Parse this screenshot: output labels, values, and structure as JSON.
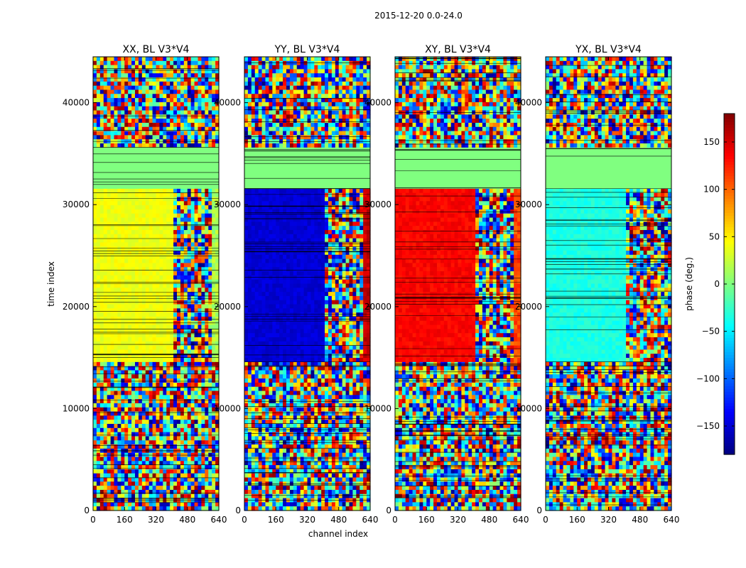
{
  "chart_data": {
    "type": "heatmap",
    "suptitle": "2015-12-20 0.0-24.0",
    "xlabel": "channel index",
    "ylabel": "time index",
    "xlim": [
      0,
      640
    ],
    "ylim": [
      0,
      44500
    ],
    "xticks": [
      0,
      160,
      320,
      480,
      640
    ],
    "yticks": [
      0,
      10000,
      20000,
      30000,
      40000
    ],
    "colorbar": {
      "label": "phase (deg.)",
      "range": [
        -180,
        180
      ],
      "ticks": [
        -150,
        -100,
        -50,
        0,
        50,
        100,
        150
      ],
      "tick_labels": [
        "−150",
        "−100",
        "−50",
        "0",
        "50",
        "100",
        "150"
      ],
      "colormap": "jet"
    },
    "panels": [
      {
        "title": "XX, BL V3*V4",
        "plateau_phase_deg": 40,
        "plateau2_phase_deg": 15
      },
      {
        "title": "YY, BL V3*V4",
        "plateau_phase_deg": -150,
        "plateau2_phase_deg": 155
      },
      {
        "title": "XY, BL V3*V4",
        "plateau_phase_deg": 135,
        "plateau2_phase_deg": 110
      },
      {
        "title": "YX, BL V3*V4",
        "plateau_phase_deg": -35,
        "plateau2_phase_deg": -70
      }
    ],
    "segments": {
      "flat_zero_time_range": [
        31500,
        35800
      ],
      "plateau_time_range": [
        14700,
        31500
      ],
      "plateau_channel_break": 410
    }
  }
}
